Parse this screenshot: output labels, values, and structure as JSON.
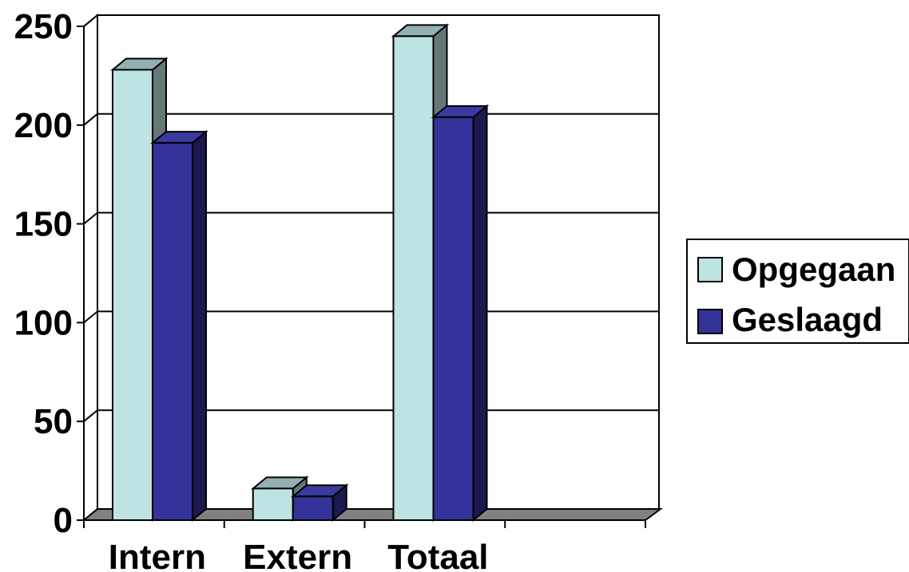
{
  "chart_data": {
    "type": "bar",
    "categories": [
      "Intern",
      "Extern",
      "Totaal",
      ""
    ],
    "series": [
      {
        "name": "Opgegaan",
        "values": [
          228,
          16,
          245,
          null
        ],
        "color": "#bde3e3"
      },
      {
        "name": "Geslaagd",
        "values": [
          191,
          12,
          204,
          null
        ],
        "color": "#333399"
      }
    ],
    "yticks": [
      "0",
      "50",
      "100",
      "150",
      "200",
      "250"
    ],
    "ylim": [
      0,
      250
    ],
    "grid": true,
    "three_d": true,
    "legend_position": "right"
  }
}
